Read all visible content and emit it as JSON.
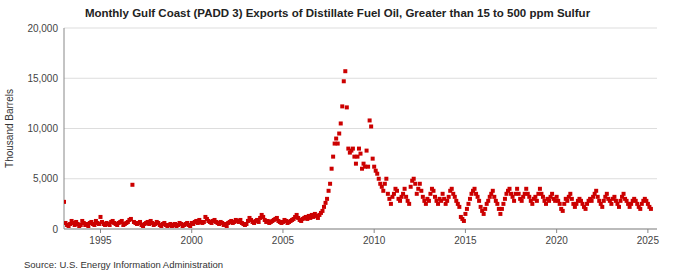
{
  "chart_data": {
    "type": "scatter",
    "title": "Monthly Gulf Coast (PADD 3) Exports of Distillate Fuel Oil, Greater than 15 to 500 ppm Sulfur",
    "ylabel": "Thousand Barrels",
    "source": "Source: U.S. Energy Information Administration",
    "color": "#cc0000",
    "marker": "square",
    "grid": true,
    "xlim": [
      1993.0,
      2025.5
    ],
    "xticks": [
      1995,
      2000,
      2005,
      2010,
      2015,
      2020,
      2025
    ],
    "ylim": [
      0,
      20000
    ],
    "yticks": [
      0,
      {
        "value": 5000,
        "label": "5,000"
      },
      {
        "value": 10000,
        "label": "10,000"
      },
      {
        "value": 15000,
        "label": "15,000"
      },
      {
        "value": 20000,
        "label": "20,000"
      }
    ],
    "x": [
      1993,
      1993.0833,
      1993.1667,
      1993.25,
      1993.3333,
      1993.4167,
      1993.5,
      1993.5833,
      1993.6667,
      1993.75,
      1993.8333,
      1993.9167,
      1994,
      1994.0833,
      1994.1667,
      1994.25,
      1994.3333,
      1994.4167,
      1994.5,
      1994.5833,
      1994.6667,
      1994.75,
      1994.8333,
      1994.9167,
      1995,
      1995.0833,
      1995.1667,
      1995.25,
      1995.3333,
      1995.4167,
      1995.5,
      1995.5833,
      1995.6667,
      1995.75,
      1995.8333,
      1995.9167,
      1996,
      1996.0833,
      1996.1667,
      1996.25,
      1996.3333,
      1996.4167,
      1996.5,
      1996.5833,
      1996.6667,
      1996.75,
      1996.8333,
      1996.9167,
      1997,
      1997.0833,
      1997.1667,
      1997.25,
      1997.3333,
      1997.4167,
      1997.5,
      1997.5833,
      1997.6667,
      1997.75,
      1997.8333,
      1997.9167,
      1998,
      1998.0833,
      1998.1667,
      1998.25,
      1998.3333,
      1998.4167,
      1998.5,
      1998.5833,
      1998.6667,
      1998.75,
      1998.8333,
      1998.9167,
      1999,
      1999.0833,
      1999.1667,
      1999.25,
      1999.3333,
      1999.4167,
      1999.5,
      1999.5833,
      1999.6667,
      1999.75,
      1999.8333,
      1999.9167,
      2000,
      2000.0833,
      2000.1667,
      2000.25,
      2000.3333,
      2000.4167,
      2000.5,
      2000.5833,
      2000.6667,
      2000.75,
      2000.8333,
      2000.9167,
      2001,
      2001.0833,
      2001.1667,
      2001.25,
      2001.3333,
      2001.4167,
      2001.5,
      2001.5833,
      2001.6667,
      2001.75,
      2001.8333,
      2001.9167,
      2002,
      2002.0833,
      2002.1667,
      2002.25,
      2002.3333,
      2002.4167,
      2002.5,
      2002.5833,
      2002.6667,
      2002.75,
      2002.8333,
      2002.9167,
      2003,
      2003.0833,
      2003.1667,
      2003.25,
      2003.3333,
      2003.4167,
      2003.5,
      2003.5833,
      2003.6667,
      2003.75,
      2003.8333,
      2003.9167,
      2004,
      2004.0833,
      2004.1667,
      2004.25,
      2004.3333,
      2004.4167,
      2004.5,
      2004.5833,
      2004.6667,
      2004.75,
      2004.8333,
      2004.9167,
      2005,
      2005.0833,
      2005.1667,
      2005.25,
      2005.3333,
      2005.4167,
      2005.5,
      2005.5833,
      2005.6667,
      2005.75,
      2005.8333,
      2005.9167,
      2006,
      2006.0833,
      2006.1667,
      2006.25,
      2006.3333,
      2006.4167,
      2006.5,
      2006.5833,
      2006.6667,
      2006.75,
      2006.8333,
      2006.9167,
      2007,
      2007.0833,
      2007.1667,
      2007.25,
      2007.3333,
      2007.4167,
      2007.5,
      2007.5833,
      2007.6667,
      2007.75,
      2007.8333,
      2007.9167,
      2008,
      2008.0833,
      2008.1667,
      2008.25,
      2008.3333,
      2008.4167,
      2008.5,
      2008.5833,
      2008.6667,
      2008.75,
      2008.8333,
      2008.9167,
      2009,
      2009.0833,
      2009.1667,
      2009.25,
      2009.3333,
      2009.4167,
      2009.5,
      2009.5833,
      2009.6667,
      2009.75,
      2009.8333,
      2009.9167,
      2010,
      2010.0833,
      2010.1667,
      2010.25,
      2010.3333,
      2010.4167,
      2010.5,
      2010.5833,
      2010.6667,
      2010.75,
      2010.8333,
      2010.9167,
      2011,
      2011.0833,
      2011.1667,
      2011.25,
      2011.3333,
      2011.4167,
      2011.5,
      2011.5833,
      2011.6667,
      2011.75,
      2011.8333,
      2011.9167,
      2012,
      2012.0833,
      2012.1667,
      2012.25,
      2012.3333,
      2012.4167,
      2012.5,
      2012.5833,
      2012.6667,
      2012.75,
      2012.8333,
      2012.9167,
      2013,
      2013.0833,
      2013.1667,
      2013.25,
      2013.3333,
      2013.4167,
      2013.5,
      2013.5833,
      2013.6667,
      2013.75,
      2013.8333,
      2013.9167,
      2014,
      2014.0833,
      2014.1667,
      2014.25,
      2014.3333,
      2014.4167,
      2014.5,
      2014.5833,
      2014.6667,
      2014.75,
      2014.8333,
      2014.9167,
      2015,
      2015.0833,
      2015.1667,
      2015.25,
      2015.3333,
      2015.4167,
      2015.5,
      2015.5833,
      2015.6667,
      2015.75,
      2015.8333,
      2015.9167,
      2016,
      2016.0833,
      2016.1667,
      2016.25,
      2016.3333,
      2016.4167,
      2016.5,
      2016.5833,
      2016.6667,
      2016.75,
      2016.8333,
      2016.9167,
      2017,
      2017.0833,
      2017.1667,
      2017.25,
      2017.3333,
      2017.4167,
      2017.5,
      2017.5833,
      2017.6667,
      2017.75,
      2017.8333,
      2017.9167,
      2018,
      2018.0833,
      2018.1667,
      2018.25,
      2018.3333,
      2018.4167,
      2018.5,
      2018.5833,
      2018.6667,
      2018.75,
      2018.8333,
      2018.9167,
      2019,
      2019.0833,
      2019.1667,
      2019.25,
      2019.3333,
      2019.4167,
      2019.5,
      2019.5833,
      2019.6667,
      2019.75,
      2019.8333,
      2019.9167,
      2020,
      2020.0833,
      2020.1667,
      2020.25,
      2020.3333,
      2020.4167,
      2020.5,
      2020.5833,
      2020.6667,
      2020.75,
      2020.8333,
      2020.9167,
      2021,
      2021.0833,
      2021.1667,
      2021.25,
      2021.3333,
      2021.4167,
      2021.5,
      2021.5833,
      2021.6667,
      2021.75,
      2021.8333,
      2021.9167,
      2022,
      2022.0833,
      2022.1667,
      2022.25,
      2022.3333,
      2022.4167,
      2022.5,
      2022.5833,
      2022.6667,
      2022.75,
      2022.8333,
      2022.9167,
      2023,
      2023.0833,
      2023.1667,
      2023.25,
      2023.3333,
      2023.4167,
      2023.5,
      2023.5833,
      2023.6667,
      2023.75,
      2023.8333,
      2023.9167,
      2024,
      2024.0833,
      2024.1667,
      2024.25,
      2024.3333,
      2024.4167,
      2024.5,
      2024.5833,
      2024.6667,
      2024.75,
      2024.8333,
      2024.9167,
      2025,
      2025.0833,
      2025.1667
    ],
    "values": [
      2700,
      600,
      400,
      300,
      500,
      800,
      600,
      400,
      700,
      500,
      300,
      400,
      800,
      600,
      400,
      500,
      300,
      600,
      700,
      500,
      400,
      800,
      600,
      500,
      1200,
      700,
      500,
      400,
      600,
      500,
      400,
      700,
      800,
      600,
      500,
      400,
      600,
      700,
      800,
      400,
      500,
      600,
      700,
      900,
      1000,
      4400,
      700,
      600,
      500,
      600,
      700,
      400,
      300,
      500,
      600,
      700,
      500,
      800,
      600,
      400,
      500,
      700,
      600,
      400,
      300,
      500,
      600,
      400,
      300,
      400,
      500,
      300,
      400,
      500,
      300,
      400,
      600,
      500,
      300,
      400,
      500,
      600,
      400,
      300,
      600,
      500,
      700,
      800,
      600,
      900,
      700,
      600,
      700,
      1200,
      1000,
      800,
      700,
      600,
      800,
      900,
      700,
      600,
      500,
      700,
      600,
      400,
      500,
      300,
      600,
      700,
      800,
      600,
      700,
      900,
      800,
      700,
      900,
      600,
      500,
      400,
      500,
      800,
      1100,
      900,
      700,
      600,
      800,
      900,
      700,
      1100,
      1400,
      1200,
      900,
      700,
      800,
      600,
      700,
      800,
      900,
      1000,
      1100,
      800,
      700,
      600,
      700,
      900,
      800,
      600,
      700,
      800,
      900,
      1000,
      1200,
      1400,
      1100,
      900,
      800,
      1000,
      1100,
      1200,
      1000,
      1300,
      1100,
      1400,
      1200,
      1500,
      1300,
      1100,
      1400,
      1600,
      1800,
      2200,
      2600,
      3000,
      3800,
      4500,
      6000,
      7200,
      8500,
      9000,
      8500,
      9500,
      10500,
      12200,
      14700,
      15700,
      12100,
      8000,
      7600,
      7800,
      8000,
      7200,
      6500,
      7200,
      8000,
      7500,
      6000,
      6500,
      6200,
      7800,
      6200,
      10800,
      10200,
      7000,
      6200,
      5800,
      5500,
      5000,
      4500,
      4200,
      3800,
      4500,
      5000,
      3500,
      3000,
      2500,
      3200,
      3500,
      4000,
      3800,
      3000,
      2800,
      3200,
      3500,
      4000,
      3200,
      2800,
      2500,
      4200,
      4800,
      5000,
      4500,
      3500,
      4000,
      4500,
      3800,
      3200,
      2800,
      2500,
      3000,
      2800,
      3500,
      4000,
      3800,
      3200,
      2800,
      2500,
      3000,
      2800,
      3500,
      3000,
      2500,
      2800,
      3200,
      3800,
      4000,
      3500,
      3200,
      2800,
      2500,
      2200,
      1200,
      1000,
      800,
      1500,
      2000,
      2500,
      3000,
      3500,
      3800,
      4000,
      3500,
      3200,
      2800,
      2200,
      1800,
      1500,
      2000,
      2500,
      2800,
      3200,
      3500,
      3800,
      3200,
      2800,
      2500,
      2000,
      1500,
      2000,
      2500,
      3000,
      3500,
      3800,
      4000,
      3500,
      3200,
      2800,
      3500,
      4000,
      3500,
      3000,
      2800,
      3200,
      3500,
      4000,
      3500,
      3200,
      2800,
      2500,
      3000,
      3200,
      2800,
      3500,
      4000,
      3500,
      3200,
      2800,
      2500,
      3000,
      2800,
      3200,
      3500,
      3000,
      2800,
      3200,
      2800,
      2500,
      2000,
      1800,
      2500,
      3000,
      2800,
      3200,
      3500,
      3000,
      2500,
      2200,
      2500,
      2800,
      3000,
      2800,
      2500,
      2200,
      2000,
      2500,
      2800,
      3000,
      2800,
      3200,
      3500,
      3800,
      3200,
      2800,
      2500,
      2200,
      2800,
      3200,
      3500,
      3000,
      2800,
      2500,
      3000,
      3200,
      2800,
      2500,
      2200,
      2800,
      3200,
      3500,
      3000,
      2800,
      2500,
      2200,
      2500,
      2800,
      3000,
      2800,
      2500,
      2200,
      2000,
      2500,
      2800,
      3000,
      2800,
      2500,
      2200,
      2000
    ]
  }
}
